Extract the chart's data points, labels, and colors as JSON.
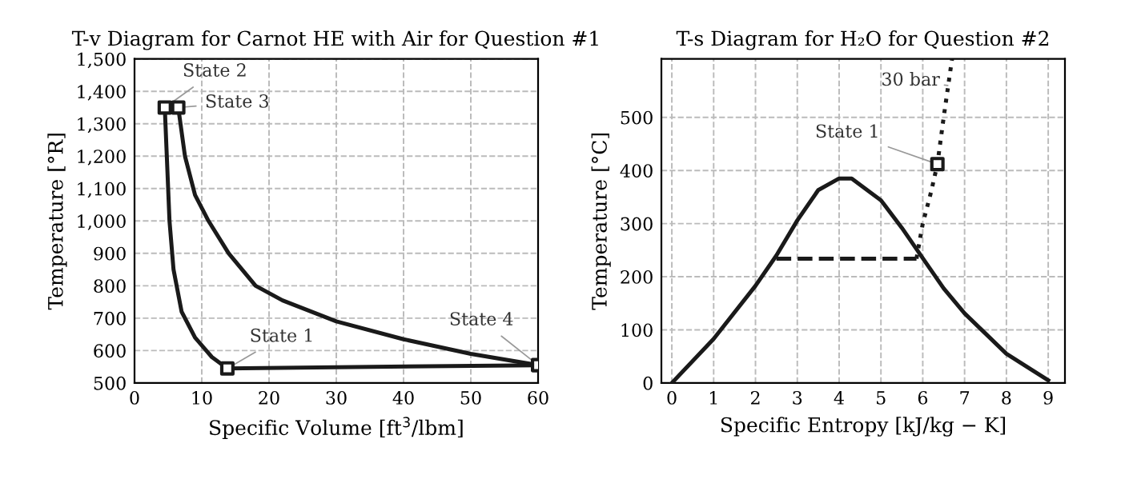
{
  "chart_data": [
    {
      "type": "line",
      "title": "T-v Diagram for Carnot HE with Air for Question #1",
      "xlabel": "Specific Volume [ft$^{3}$/lbm]",
      "ylabel": "Temperature [°R]",
      "xlim": [
        0,
        60
      ],
      "ylim": [
        500,
        1500
      ],
      "xticks": [
        0,
        10,
        20,
        30,
        40,
        50,
        60
      ],
      "yticks": [
        500,
        600,
        700,
        800,
        900,
        {
          "value": 1000,
          "label": "1,000"
        },
        {
          "value": 1100,
          "label": "1,100"
        },
        {
          "value": 1200,
          "label": "1,200"
        },
        {
          "value": 1300,
          "label": "1,300"
        },
        {
          "value": 1400,
          "label": "1,400"
        },
        {
          "value": 1500,
          "label": "1,500"
        }
      ],
      "grid": true,
      "legend": false,
      "series": [
        {
          "color": "#1a1a1a",
          "line_style": "solid",
          "x": [
            4.5,
            4.8,
            5.2,
            5.8,
            7,
            9,
            11.5,
            13.8
          ],
          "values": [
            1350,
            1200,
            1000,
            850,
            720,
            640,
            580,
            545
          ]
        },
        {
          "color": "#1a1a1a",
          "line_style": "solid",
          "x": [
            6.5,
            7.5,
            9,
            11,
            14,
            18,
            22,
            30,
            40,
            50,
            60
          ],
          "values": [
            1350,
            1200,
            1080,
            1000,
            900,
            800,
            755,
            690,
            635,
            590,
            555
          ]
        },
        {
          "color": "#1a1a1a",
          "line_style": "solid",
          "x": [
            13.8,
            60
          ],
          "values": [
            545,
            555
          ]
        },
        {
          "type": "scatter",
          "marker": "square",
          "color": "#1a1a1a",
          "x": [
            13.8,
            4.5,
            6.5,
            60
          ],
          "values": [
            545,
            1350,
            1350,
            555
          ]
        }
      ],
      "annotations": [
        {
          "text": "State 1",
          "x": 13.8,
          "y": 545
        },
        {
          "text": "State 2",
          "x": 4.5,
          "y": 1350
        },
        {
          "text": "State 3",
          "x": 6.5,
          "y": 1350
        },
        {
          "text": "State 4",
          "x": 60,
          "y": 555
        }
      ]
    },
    {
      "type": "line",
      "title": "T-s Diagram for H₂O for Question #2",
      "xlabel": "Specific Entropy [kJ/kg − K]",
      "ylabel": "Temperature [°C]",
      "xlim": [
        -0.25,
        9.4
      ],
      "ylim": [
        0,
        610
      ],
      "xticks": [
        0,
        1,
        2,
        3,
        4,
        5,
        6,
        7,
        8,
        9
      ],
      "yticks": [
        0,
        100,
        200,
        300,
        400,
        500
      ],
      "grid": true,
      "legend": false,
      "series": [
        {
          "color": "#1a1a1a",
          "line_style": "solid",
          "x": [
            0,
            1,
            2,
            2.5,
            3,
            3.5,
            4,
            4.3,
            5,
            5.5,
            6,
            6.5,
            7,
            8,
            9
          ],
          "values": [
            0,
            83,
            183,
            240,
            306,
            363,
            385,
            385,
            344,
            292,
            235,
            178,
            131,
            55,
            5
          ]
        },
        {
          "color": "#1a1a1a",
          "line_style": "dashed",
          "x": [
            2.5,
            5.85
          ],
          "values": [
            234,
            234
          ]
        },
        {
          "color": "#1a1a1a",
          "line_style": "dotted",
          "x": [
            5.85,
            6.0,
            6.2,
            6.35,
            6.5,
            6.7
          ],
          "values": [
            234,
            300,
            360,
            412,
            500,
            610
          ]
        },
        {
          "type": "scatter",
          "marker": "square",
          "color": "#1a1a1a",
          "x": [
            6.35
          ],
          "values": [
            412
          ]
        }
      ],
      "annotations": [
        {
          "text": "30 bar",
          "x": 6.6,
          "y": 560
        },
        {
          "text": "State 1",
          "x": 6.35,
          "y": 412
        }
      ]
    }
  ]
}
